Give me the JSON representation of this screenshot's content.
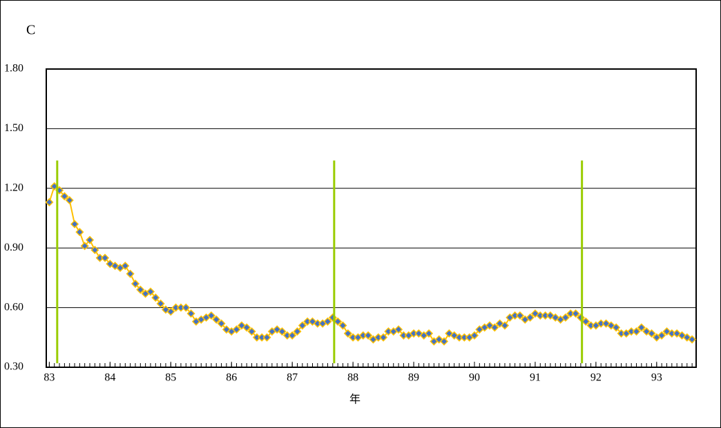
{
  "chart_data": {
    "type": "line",
    "title": "C",
    "x_label": "年",
    "xlim": [
      82.95,
      93.65
    ],
    "xticks": [
      83,
      84,
      85,
      86,
      87,
      88,
      89,
      90,
      91,
      92,
      93
    ],
    "ylim": [
      0.3,
      1.8
    ],
    "yticks": [
      {
        "value": 0.3,
        "label": "0.30"
      },
      {
        "value": 0.6,
        "label": "0.60"
      },
      {
        "value": 0.9,
        "label": "0.90"
      },
      {
        "value": 1.2,
        "label": "1.20"
      },
      {
        "value": 1.5,
        "label": "1.50"
      },
      {
        "value": 1.8,
        "label": "1.80"
      }
    ],
    "grid": true,
    "series": [
      {
        "color": "#4472c4",
        "edge_color": "#ffc000",
        "x": [
          83,
          83.083,
          83.167,
          83.25,
          83.333,
          83.417,
          83.5,
          83.583,
          83.667,
          83.75,
          83.833,
          83.917,
          84,
          84.083,
          84.167,
          84.25,
          84.333,
          84.417,
          84.5,
          84.583,
          84.667,
          84.75,
          84.833,
          84.917,
          85,
          85.083,
          85.167,
          85.25,
          85.333,
          85.417,
          85.5,
          85.583,
          85.667,
          85.75,
          85.833,
          85.917,
          86,
          86.083,
          86.167,
          86.25,
          86.333,
          86.417,
          86.5,
          86.583,
          86.667,
          86.75,
          86.833,
          86.917,
          87,
          87.083,
          87.167,
          87.25,
          87.333,
          87.417,
          87.5,
          87.583,
          87.667,
          87.75,
          87.833,
          87.917,
          88,
          88.083,
          88.167,
          88.25,
          88.333,
          88.417,
          88.5,
          88.583,
          88.667,
          88.75,
          88.833,
          88.917,
          89,
          89.083,
          89.167,
          89.25,
          89.333,
          89.417,
          89.5,
          89.583,
          89.667,
          89.75,
          89.833,
          89.917,
          90,
          90.083,
          90.167,
          90.25,
          90.333,
          90.417,
          90.5,
          90.583,
          90.667,
          90.75,
          90.833,
          90.917,
          91,
          91.083,
          91.167,
          91.25,
          91.333,
          91.417,
          91.5,
          91.583,
          91.667,
          91.75,
          91.833,
          91.917,
          92,
          92.083,
          92.167,
          92.25,
          92.333,
          92.417,
          92.5,
          92.583,
          92.667,
          92.75,
          92.833,
          92.917,
          93,
          93.083,
          93.167,
          93.25,
          93.333,
          93.417,
          93.5,
          93.583
        ],
        "values": [
          1.13,
          1.21,
          1.19,
          1.16,
          1.14,
          1.02,
          0.98,
          0.91,
          0.94,
          0.89,
          0.85,
          0.85,
          0.82,
          0.81,
          0.8,
          0.81,
          0.77,
          0.72,
          0.69,
          0.67,
          0.68,
          0.65,
          0.62,
          0.59,
          0.58,
          0.6,
          0.6,
          0.6,
          0.57,
          0.53,
          0.54,
          0.55,
          0.56,
          0.54,
          0.52,
          0.49,
          0.48,
          0.49,
          0.51,
          0.5,
          0.48,
          0.45,
          0.45,
          0.45,
          0.48,
          0.49,
          0.48,
          0.46,
          0.46,
          0.48,
          0.51,
          0.53,
          0.53,
          0.52,
          0.52,
          0.53,
          0.55,
          0.53,
          0.51,
          0.47,
          0.45,
          0.45,
          0.46,
          0.46,
          0.44,
          0.45,
          0.45,
          0.48,
          0.48,
          0.49,
          0.46,
          0.46,
          0.47,
          0.47,
          0.46,
          0.47,
          0.43,
          0.44,
          0.43,
          0.47,
          0.46,
          0.45,
          0.45,
          0.45,
          0.46,
          0.49,
          0.5,
          0.51,
          0.5,
          0.52,
          0.51,
          0.55,
          0.56,
          0.56,
          0.54,
          0.55,
          0.57,
          0.56,
          0.56,
          0.56,
          0.55,
          0.54,
          0.55,
          0.57,
          0.57,
          0.55,
          0.53,
          0.51,
          0.51,
          0.52,
          0.52,
          0.51,
          0.5,
          0.47,
          0.47,
          0.48,
          0.48,
          0.5,
          0.48,
          0.47,
          0.45,
          0.46,
          0.48,
          0.47,
          0.47,
          0.46,
          0.45,
          0.44
        ]
      }
    ],
    "reference_lines": {
      "color": "#99cc00",
      "lines": [
        {
          "x": 83.13,
          "y": [
            0.32,
            1.34
          ]
        },
        {
          "x": 87.69,
          "y": [
            0.32,
            1.34
          ]
        },
        {
          "x": 91.77,
          "y": [
            0.32,
            1.34
          ]
        }
      ]
    }
  }
}
